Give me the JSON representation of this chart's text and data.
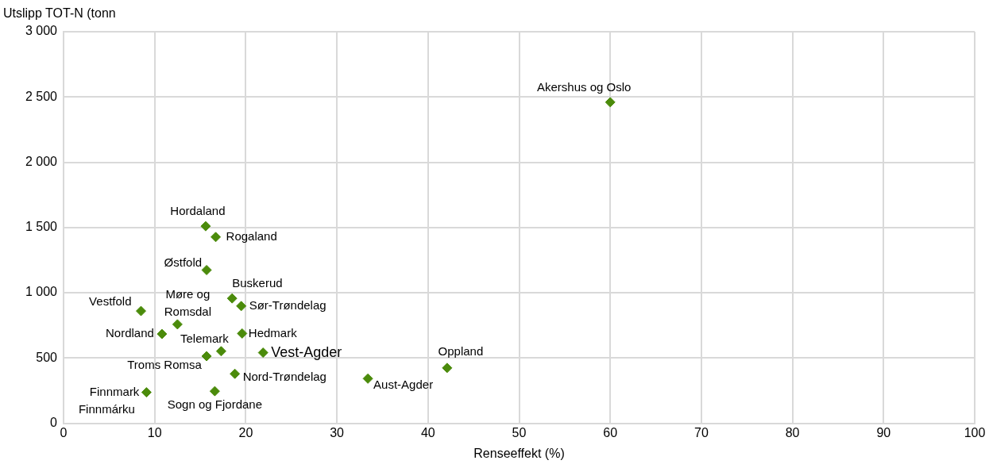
{
  "chart_data": {
    "type": "scatter",
    "xlabel": "Renseeffekt (%)",
    "ylabel": "Utslipp TOT-N (tonn",
    "x": [
      60,
      15.6,
      16.7,
      15.7,
      18.5,
      19.5,
      8.5,
      12.5,
      10.8,
      19.6,
      17.3,
      15.7,
      21.9,
      18.8,
      9.1,
      16.6,
      33.4,
      42.1
    ],
    "values": [
      2460,
      1510,
      1427,
      1174,
      957,
      898,
      860,
      758,
      684,
      688,
      552,
      514,
      541,
      379,
      237,
      246,
      342,
      424
    ],
    "color": "#4b8b0b",
    "marker": "diamond",
    "grid": true,
    "legend": false,
    "xlim": [
      0,
      100
    ],
    "xticks": [
      0,
      10,
      20,
      30,
      40,
      50,
      60,
      70,
      80,
      90,
      100
    ],
    "ylim": [
      0,
      3000
    ],
    "yticks": [
      {
        "value": 0,
        "label": "0"
      },
      {
        "value": 500,
        "label": "500"
      },
      {
        "value": 1000,
        "label": "1 000"
      },
      {
        "value": 1500,
        "label": "1 500"
      },
      {
        "value": 2000,
        "label": "2 000"
      },
      {
        "value": 2500,
        "label": "2 500"
      },
      {
        "value": 3000,
        "label": "3 000"
      }
    ],
    "annotations": [
      {
        "text": "Akershus og Oslo",
        "x": 60,
        "y": 2460
      },
      {
        "text": "Hordaland",
        "x": 15.6,
        "y": 1510
      },
      {
        "text": "Rogaland",
        "x": 16.7,
        "y": 1427
      },
      {
        "text": "Østfold",
        "x": 15.7,
        "y": 1174
      },
      {
        "text": "Buskerud",
        "x": 18.5,
        "y": 957
      },
      {
        "text": "Sør-Trøndelag",
        "x": 19.5,
        "y": 898
      },
      {
        "text": "Vestfold",
        "x": 8.5,
        "y": 860
      },
      {
        "text": "Møre og Romsdal",
        "x": 12.5,
        "y": 758
      },
      {
        "text": "Nordland",
        "x": 10.8,
        "y": 684
      },
      {
        "text": "Hedmark",
        "x": 19.6,
        "y": 688
      },
      {
        "text": "Telemark",
        "x": 17.3,
        "y": 552
      },
      {
        "text": "Troms Romsa",
        "x": 15.7,
        "y": 514
      },
      {
        "text": "Vest-Agder",
        "x": 21.9,
        "y": 541
      },
      {
        "text": "Nord-Trøndelag",
        "x": 18.8,
        "y": 379
      },
      {
        "text": "Finnmark Finnmárku",
        "x": 9.1,
        "y": 237
      },
      {
        "text": "Sogn og Fjordane",
        "x": 16.6,
        "y": 246
      },
      {
        "text": "Aust-Agder",
        "x": 33.4,
        "y": 342
      },
      {
        "text": "Oppland",
        "x": 42.1,
        "y": 424
      }
    ]
  }
}
